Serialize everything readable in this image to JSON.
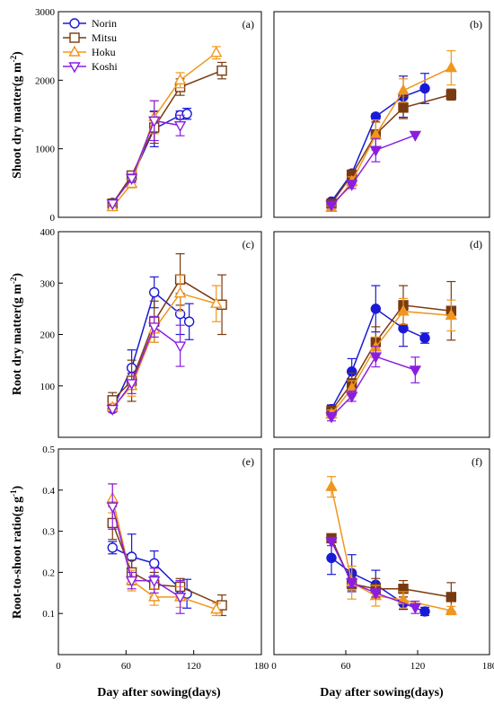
{
  "figure": {
    "xlabel": "Day after sowing(days)",
    "colors": {
      "Norin": "#1a1ad6",
      "Mitsu": "#7a3a10",
      "Hoku": "#f0961e",
      "Koshi": "#8a1ee0"
    },
    "markers": {
      "Norin": "circle",
      "Mitsu": "square",
      "Hoku": "triangle-up",
      "Koshi": "triangle-down"
    }
  },
  "rows": [
    {
      "ylabel_main": "Shoot dry matter(g m",
      "ylabel_sup": "-2",
      "ylabel_end": ")"
    },
    {
      "ylabel_main": "Root dry matter(g m",
      "ylabel_sup": "-2",
      "ylabel_end": ")"
    },
    {
      "ylabel_main": "Root-to-shoot ratio(g g",
      "ylabel_sup": "-1",
      "ylabel_end": ")"
    }
  ],
  "chart_data": [
    {
      "type": "line",
      "panel": "(a)",
      "filled": false,
      "xlim": [
        0,
        180
      ],
      "ylim": [
        0,
        3000
      ],
      "xticks": [],
      "yticks": [
        0,
        1000,
        2000,
        3000
      ],
      "legend": "top-left",
      "series": [
        {
          "name": "Norin",
          "points": [
            [
              48,
              210,
              20
            ],
            [
              65,
              570,
              60
            ],
            [
              85,
              1290,
              260
            ],
            [
              108,
              1490,
              60
            ],
            [
              114,
              1510,
              80
            ]
          ]
        },
        {
          "name": "Mitsu",
          "points": [
            [
              48,
              200,
              30
            ],
            [
              65,
              610,
              60
            ],
            [
              85,
              1310,
              230
            ],
            [
              108,
              1900,
              120
            ],
            [
              145,
              2140,
              120
            ]
          ]
        },
        {
          "name": "Hoku",
          "points": [
            [
              48,
              150,
              30
            ],
            [
              65,
              490,
              60
            ],
            [
              85,
              1460,
              240
            ],
            [
              108,
              2000,
              110
            ],
            [
              140,
              2400,
              90
            ]
          ]
        },
        {
          "name": "Koshi",
          "points": [
            [
              48,
              200,
              30
            ],
            [
              65,
              570,
              60
            ],
            [
              85,
              1410,
              290
            ],
            [
              108,
              1340,
              150
            ]
          ]
        }
      ]
    },
    {
      "type": "line",
      "panel": "(b)",
      "filled": true,
      "xlim": [
        0,
        180
      ],
      "ylim": [
        0,
        3000
      ],
      "xticks": [],
      "yticks": [],
      "series": [
        {
          "name": "Norin",
          "points": [
            [
              48,
              230,
              20
            ],
            [
              65,
              640,
              50
            ],
            [
              85,
              1470,
              40
            ],
            [
              108,
              1760,
              300
            ],
            [
              126,
              1880,
              220
            ]
          ]
        },
        {
          "name": "Mitsu",
          "points": [
            [
              48,
              200,
              30
            ],
            [
              65,
              620,
              50
            ],
            [
              85,
              1210,
              180
            ],
            [
              108,
              1600,
              160
            ],
            [
              148,
              1790,
              80
            ]
          ]
        },
        {
          "name": "Hoku",
          "points": [
            [
              48,
              140,
              30
            ],
            [
              65,
              520,
              70
            ],
            [
              85,
              1200,
              220
            ],
            [
              108,
              1850,
              170
            ],
            [
              148,
              2180,
              250
            ]
          ]
        },
        {
          "name": "Koshi",
          "points": [
            [
              48,
              180,
              40
            ],
            [
              65,
              480,
              60
            ],
            [
              85,
              980,
              170
            ],
            [
              118,
              1200,
              0
            ]
          ]
        }
      ]
    },
    {
      "type": "line",
      "panel": "(c)",
      "filled": false,
      "xlim": [
        0,
        180
      ],
      "ylim": [
        0,
        400
      ],
      "xticks": [],
      "yticks": [
        100,
        200,
        300,
        400
      ],
      "series": [
        {
          "name": "Norin",
          "points": [
            [
              48,
              55,
              6
            ],
            [
              65,
              135,
              35
            ],
            [
              85,
              282,
              30
            ],
            [
              108,
              240,
              40
            ],
            [
              116,
              225,
              35
            ]
          ]
        },
        {
          "name": "Mitsu",
          "points": [
            [
              48,
              72,
              15
            ],
            [
              65,
              110,
              40
            ],
            [
              85,
              225,
              40
            ],
            [
              108,
              307,
              50
            ],
            [
              145,
              258,
              58
            ]
          ]
        },
        {
          "name": "Hoku",
          "points": [
            [
              48,
              58,
              8
            ],
            [
              65,
              100,
              20
            ],
            [
              85,
              210,
              25
            ],
            [
              108,
              280,
              35
            ],
            [
              140,
              260,
              35
            ]
          ]
        },
        {
          "name": "Koshi",
          "points": [
            [
              48,
              55,
              6
            ],
            [
              65,
              105,
              20
            ],
            [
              85,
              215,
              20
            ],
            [
              108,
              178,
              40
            ]
          ]
        }
      ]
    },
    {
      "type": "line",
      "panel": "(d)",
      "filled": true,
      "xlim": [
        0,
        180
      ],
      "ylim": [
        0,
        400
      ],
      "xticks": [],
      "yticks": [],
      "series": [
        {
          "name": "Norin",
          "points": [
            [
              48,
              55,
              8
            ],
            [
              65,
              128,
              25
            ],
            [
              85,
              250,
              45
            ],
            [
              108,
              212,
              35
            ],
            [
              126,
              193,
              10
            ]
          ]
        },
        {
          "name": "Mitsu",
          "points": [
            [
              48,
              52,
              8
            ],
            [
              65,
              105,
              20
            ],
            [
              85,
              185,
              30
            ],
            [
              108,
              257,
              38
            ],
            [
              148,
              246,
              57
            ]
          ]
        },
        {
          "name": "Hoku",
          "points": [
            [
              48,
              45,
              8
            ],
            [
              65,
              95,
              15
            ],
            [
              85,
              175,
              20
            ],
            [
              108,
              245,
              25
            ],
            [
              148,
              237,
              30
            ]
          ]
        },
        {
          "name": "Koshi",
          "points": [
            [
              48,
              40,
              8
            ],
            [
              65,
              80,
              10
            ],
            [
              85,
              157,
              20
            ],
            [
              118,
              131,
              25
            ]
          ]
        }
      ]
    },
    {
      "type": "line",
      "panel": "(e)",
      "filled": false,
      "xlim": [
        0,
        180
      ],
      "ylim": [
        0,
        0.5
      ],
      "xticks": [
        0,
        60,
        120,
        180
      ],
      "yticks": [
        0.1,
        0.2,
        0.3,
        0.4,
        0.5
      ],
      "series": [
        {
          "name": "Norin",
          "points": [
            [
              48,
              0.26,
              0.015
            ],
            [
              65,
              0.238,
              0.055
            ],
            [
              85,
              0.222,
              0.03
            ],
            [
              108,
              0.16,
              0.02
            ],
            [
              114,
              0.148,
              0.035
            ]
          ]
        },
        {
          "name": "Mitsu",
          "points": [
            [
              48,
              0.32,
              0.04
            ],
            [
              65,
              0.2,
              0.03
            ],
            [
              85,
              0.17,
              0.03
            ],
            [
              108,
              0.165,
              0.02
            ],
            [
              145,
              0.12,
              0.025
            ]
          ]
        },
        {
          "name": "Hoku",
          "points": [
            [
              48,
              0.38,
              0.035
            ],
            [
              65,
              0.18,
              0.025
            ],
            [
              85,
              0.14,
              0.02
            ],
            [
              108,
              0.14,
              0.025
            ],
            [
              140,
              0.11,
              0.015
            ]
          ]
        },
        {
          "name": "Koshi",
          "points": [
            [
              48,
              0.36,
              0.055
            ],
            [
              65,
              0.18,
              0.02
            ],
            [
              85,
              0.18,
              0.03
            ],
            [
              108,
              0.14,
              0.04
            ]
          ]
        }
      ]
    },
    {
      "type": "line",
      "panel": "(f)",
      "filled": true,
      "xlim": [
        0,
        180
      ],
      "ylim": [
        0,
        0.5
      ],
      "xticks": [
        0,
        60,
        120,
        180
      ],
      "yticks": [],
      "series": [
        {
          "name": "Norin",
          "points": [
            [
              48,
              0.235,
              0.04
            ],
            [
              65,
              0.198,
              0.045
            ],
            [
              85,
              0.17,
              0.035
            ],
            [
              108,
              0.125,
              0.015
            ],
            [
              126,
              0.105,
              0.01
            ]
          ]
        },
        {
          "name": "Mitsu",
          "points": [
            [
              48,
              0.283,
              0.01
            ],
            [
              65,
              0.172,
              0.015
            ],
            [
              85,
              0.16,
              0.025
            ],
            [
              108,
              0.16,
              0.02
            ],
            [
              148,
              0.14,
              0.035
            ]
          ]
        },
        {
          "name": "Hoku",
          "points": [
            [
              48,
              0.408,
              0.025
            ],
            [
              65,
              0.175,
              0.04
            ],
            [
              85,
              0.143,
              0.025
            ],
            [
              108,
              0.133,
              0.02
            ],
            [
              148,
              0.107,
              0.01
            ]
          ]
        },
        {
          "name": "Koshi",
          "points": [
            [
              48,
              0.275,
              0.01
            ],
            [
              65,
              0.175,
              0.01
            ],
            [
              85,
              0.15,
              0.01
            ],
            [
              118,
              0.115,
              0.015
            ]
          ]
        }
      ]
    }
  ]
}
